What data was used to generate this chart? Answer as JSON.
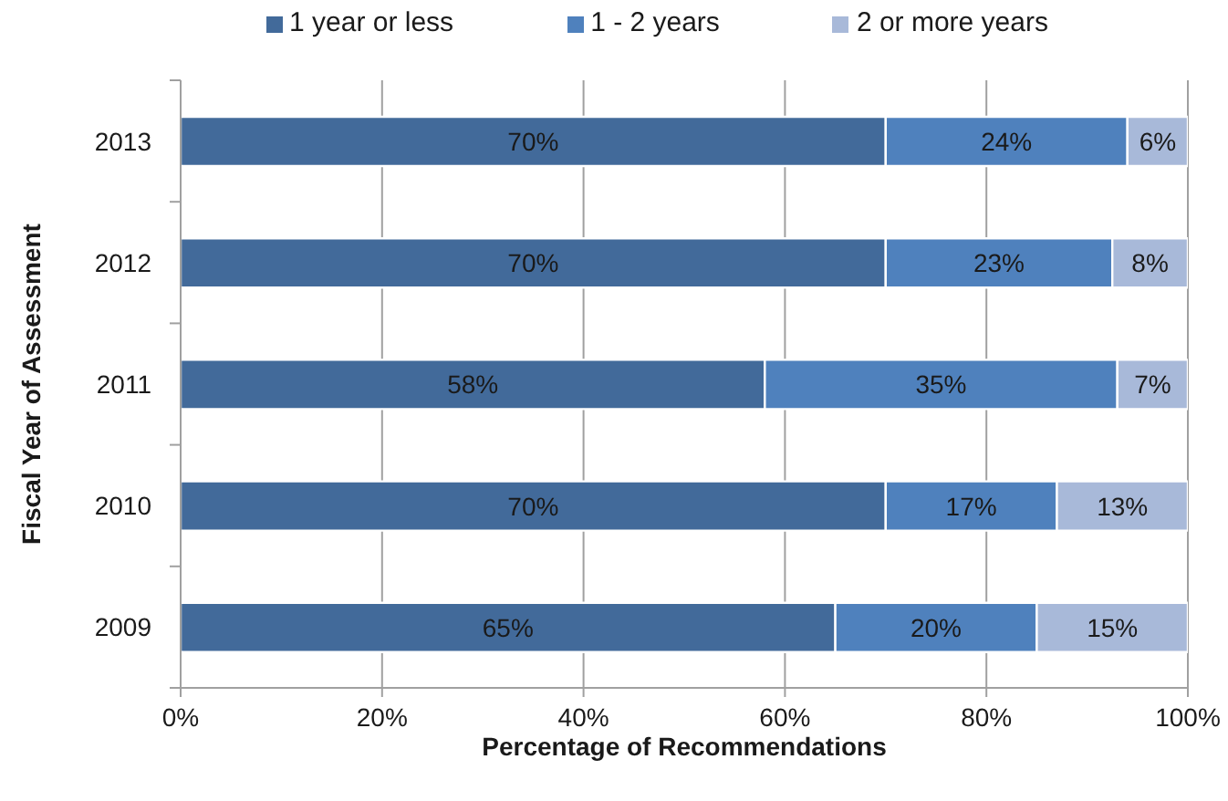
{
  "chart_data": {
    "type": "bar",
    "orientation": "horizontal",
    "stacked": true,
    "categories": [
      "2013",
      "2012",
      "2011",
      "2010",
      "2009"
    ],
    "series": [
      {
        "name": "1 year or less",
        "color": "#426a9a",
        "values": [
          70,
          70,
          58,
          70,
          65
        ],
        "value_labels": [
          "70%",
          "70%",
          "58%",
          "70%",
          "65%"
        ]
      },
      {
        "name": "1 - 2 years",
        "color": "#4f81bd",
        "values": [
          24,
          22.5,
          35,
          17,
          20
        ],
        "value_labels": [
          "24%",
          "23%",
          "35%",
          "17%",
          "20%"
        ]
      },
      {
        "name": "2 or more years",
        "color": "#a8b9d9",
        "values": [
          6,
          7.5,
          7,
          13,
          15
        ],
        "value_labels": [
          "6%",
          "8%",
          "7%",
          "13%",
          "15%"
        ]
      }
    ],
    "xlabel": "Percentage of Recommendations",
    "ylabel": "Fiscal Year of Assessment",
    "xlim": [
      0,
      100
    ],
    "xticks": [
      {
        "value": 0,
        "label": "0%"
      },
      {
        "value": 20,
        "label": "20%"
      },
      {
        "value": 40,
        "label": "40%"
      },
      {
        "value": 60,
        "label": "60%"
      },
      {
        "value": 80,
        "label": "80%"
      },
      {
        "value": 100,
        "label": "100%"
      }
    ],
    "grid": "x",
    "legend": "top"
  }
}
